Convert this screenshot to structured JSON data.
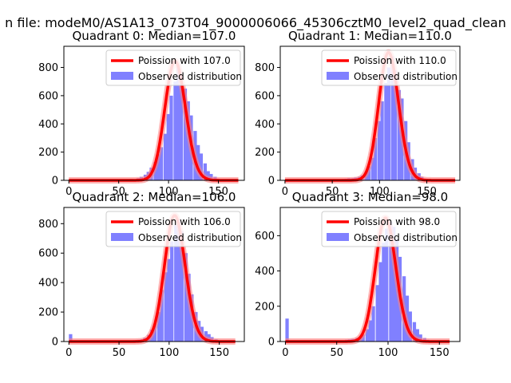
{
  "suptitle": "n file: modeM0/AS1A13_073T04_9000006066_45306cztM0_level2_quad_clean",
  "colors": {
    "bars": "#8080ff",
    "curve": "#ff0000",
    "curve_glow": "#ff8080"
  },
  "chart_data": [
    {
      "type": "bar",
      "title": "Quadrant 0: Median=107.0",
      "legend": [
        "Poission with 107.0",
        "Observed distribution"
      ],
      "legend_position": "top-right",
      "xlim": [
        -5,
        176
      ],
      "ylim": [
        0,
        950
      ],
      "xticks": [
        0,
        50,
        100,
        150
      ],
      "yticks": [
        0,
        200,
        400,
        600,
        800
      ],
      "median": 107,
      "bin_width": 3.4,
      "bars": [
        [
          61,
          10
        ],
        [
          68,
          15
        ],
        [
          71,
          25
        ],
        [
          75,
          40
        ],
        [
          78,
          60
        ],
        [
          81,
          90
        ],
        [
          85,
          130
        ],
        [
          88,
          185
        ],
        [
          91,
          235
        ],
        [
          95,
          330
        ],
        [
          98,
          470
        ],
        [
          101,
          600
        ],
        [
          105,
          700
        ],
        [
          108,
          820
        ],
        [
          111,
          740
        ],
        [
          115,
          650
        ],
        [
          118,
          560
        ],
        [
          121,
          460
        ],
        [
          125,
          350
        ],
        [
          128,
          250
        ],
        [
          131,
          190
        ],
        [
          135,
          120
        ],
        [
          138,
          65
        ],
        [
          141,
          45
        ],
        [
          145,
          25
        ],
        [
          148,
          12
        ]
      ],
      "curve_x": [
        0,
        170
      ]
    },
    {
      "type": "bar",
      "title": "Quadrant 1: Median=110.0",
      "legend": [
        "Poission with 110.0",
        "Observed distribution"
      ],
      "legend_position": "top-right",
      "xlim": [
        -5,
        185
      ],
      "ylim": [
        0,
        950
      ],
      "xticks": [
        0,
        50,
        100,
        150
      ],
      "yticks": [
        0,
        200,
        400,
        600,
        800
      ],
      "median": 110,
      "bin_width": 3.5,
      "bars": [
        [
          60,
          10
        ],
        [
          63,
          12
        ],
        [
          66,
          15
        ],
        [
          70,
          15
        ],
        [
          73,
          20
        ],
        [
          77,
          25
        ],
        [
          80,
          35
        ],
        [
          84,
          60
        ],
        [
          87,
          100
        ],
        [
          91,
          160
        ],
        [
          94,
          300
        ],
        [
          98,
          420
        ],
        [
          101,
          560
        ],
        [
          105,
          690
        ],
        [
          108,
          800
        ],
        [
          112,
          880
        ],
        [
          115,
          780
        ],
        [
          119,
          640
        ],
        [
          122,
          580
        ],
        [
          126,
          420
        ],
        [
          129,
          270
        ],
        [
          133,
          150
        ],
        [
          136,
          90
        ],
        [
          140,
          50
        ],
        [
          143,
          25
        ],
        [
          147,
          12
        ]
      ],
      "curve_x": [
        0,
        180
      ]
    },
    {
      "type": "bar",
      "title": "Quadrant 2: Median=106.0",
      "legend": [
        "Poission with 106.0",
        "Observed distribution"
      ],
      "legend_position": "top-right",
      "xlim": [
        -5,
        175
      ],
      "ylim": [
        0,
        910
      ],
      "xticks": [
        0,
        50,
        100,
        150
      ],
      "yticks": [
        0,
        200,
        400,
        600,
        800
      ],
      "median": 106,
      "bin_width": 3.4,
      "bars": [
        [
          0,
          50
        ],
        [
          64,
          10
        ],
        [
          68,
          12
        ],
        [
          71,
          15
        ],
        [
          74,
          25
        ],
        [
          78,
          45
        ],
        [
          81,
          80
        ],
        [
          84,
          120
        ],
        [
          88,
          200
        ],
        [
          91,
          350
        ],
        [
          95,
          470
        ],
        [
          98,
          560
        ],
        [
          101,
          680
        ],
        [
          105,
          790
        ],
        [
          108,
          830
        ],
        [
          111,
          750
        ],
        [
          115,
          600
        ],
        [
          118,
          460
        ],
        [
          121,
          320
        ],
        [
          125,
          200
        ],
        [
          128,
          140
        ],
        [
          131,
          100
        ],
        [
          135,
          70
        ],
        [
          138,
          50
        ],
        [
          141,
          30
        ],
        [
          145,
          15
        ]
      ],
      "curve_x": [
        0,
        166
      ]
    },
    {
      "type": "bar",
      "title": "Quadrant 3: Median=98.0",
      "legend": [
        "Poission with 98.0",
        "Observed distribution"
      ],
      "legend_position": "top-right",
      "xlim": [
        -5,
        170
      ],
      "ylim": [
        0,
        760
      ],
      "xticks": [
        0,
        50,
        100,
        150
      ],
      "yticks": [
        0,
        200,
        400,
        600
      ],
      "median": 98,
      "bin_width": 3.3,
      "bars": [
        [
          0,
          130
        ],
        [
          58,
          10
        ],
        [
          61,
          12
        ],
        [
          64,
          15
        ],
        [
          68,
          20
        ],
        [
          71,
          25
        ],
        [
          74,
          40
        ],
        [
          78,
          70
        ],
        [
          81,
          120
        ],
        [
          84,
          200
        ],
        [
          88,
          320
        ],
        [
          91,
          450
        ],
        [
          94,
          560
        ],
        [
          97,
          640
        ],
        [
          101,
          680
        ],
        [
          104,
          650
        ],
        [
          107,
          580
        ],
        [
          110,
          480
        ],
        [
          114,
          370
        ],
        [
          117,
          260
        ],
        [
          120,
          170
        ],
        [
          124,
          110
        ],
        [
          127,
          70
        ],
        [
          130,
          40
        ],
        [
          134,
          20
        ],
        [
          137,
          10
        ]
      ],
      "curve_x": [
        0,
        160
      ]
    }
  ]
}
